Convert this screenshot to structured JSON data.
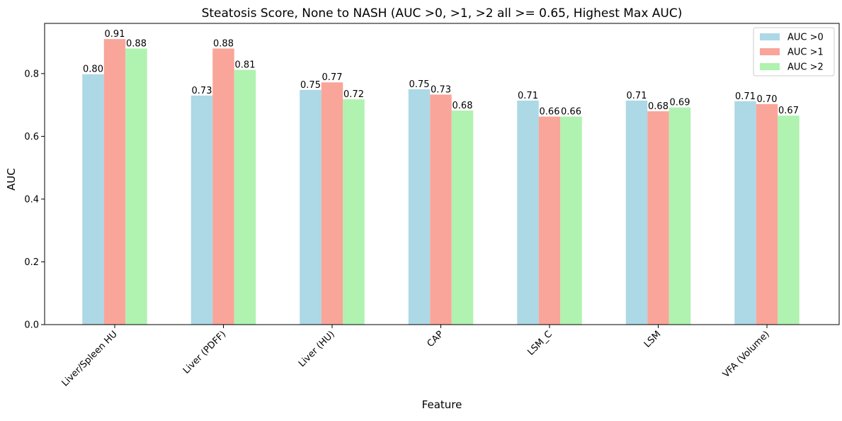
{
  "chart_data": {
    "type": "bar",
    "title": "Steatosis Score, None to NASH (AUC >0, >1, >2 all >= 0.65, Highest Max AUC)",
    "xlabel": "Feature",
    "ylabel": "AUC",
    "ylim": [
      0,
      0.96
    ],
    "yticks": [
      "0.0",
      "0.2",
      "0.4",
      "0.6",
      "0.8"
    ],
    "ytick_values": [
      0,
      0.2,
      0.4,
      0.6,
      0.8
    ],
    "grid": false,
    "legend_position": "top-right",
    "categories": [
      "Liver/Spleen HU",
      "Liver (PDFF)",
      "Liver (HU)",
      "CAP",
      "LSM_C",
      "LSM",
      "VFA (Volume)"
    ],
    "series": [
      {
        "name": "AUC >0",
        "color": "#add8e6",
        "values": [
          0.798,
          0.73,
          0.748,
          0.75,
          0.714,
          0.714,
          0.712
        ],
        "labels": [
          "0.80",
          "0.73",
          "0.75",
          "0.75",
          "0.71",
          "0.71",
          "0.71"
        ]
      },
      {
        "name": "AUC >1",
        "color": "#f9a59a",
        "values": [
          0.91,
          0.88,
          0.772,
          0.733,
          0.663,
          0.68,
          0.703
        ],
        "labels": [
          "0.91",
          "0.88",
          "0.77",
          "0.73",
          "0.66",
          "0.68",
          "0.70"
        ]
      },
      {
        "name": "AUC >2",
        "color": "#b0f2b0",
        "values": [
          0.88,
          0.812,
          0.718,
          0.682,
          0.663,
          0.692,
          0.666
        ],
        "labels": [
          "0.88",
          "0.81",
          "0.72",
          "0.68",
          "0.66",
          "0.69",
          "0.67"
        ]
      }
    ]
  }
}
